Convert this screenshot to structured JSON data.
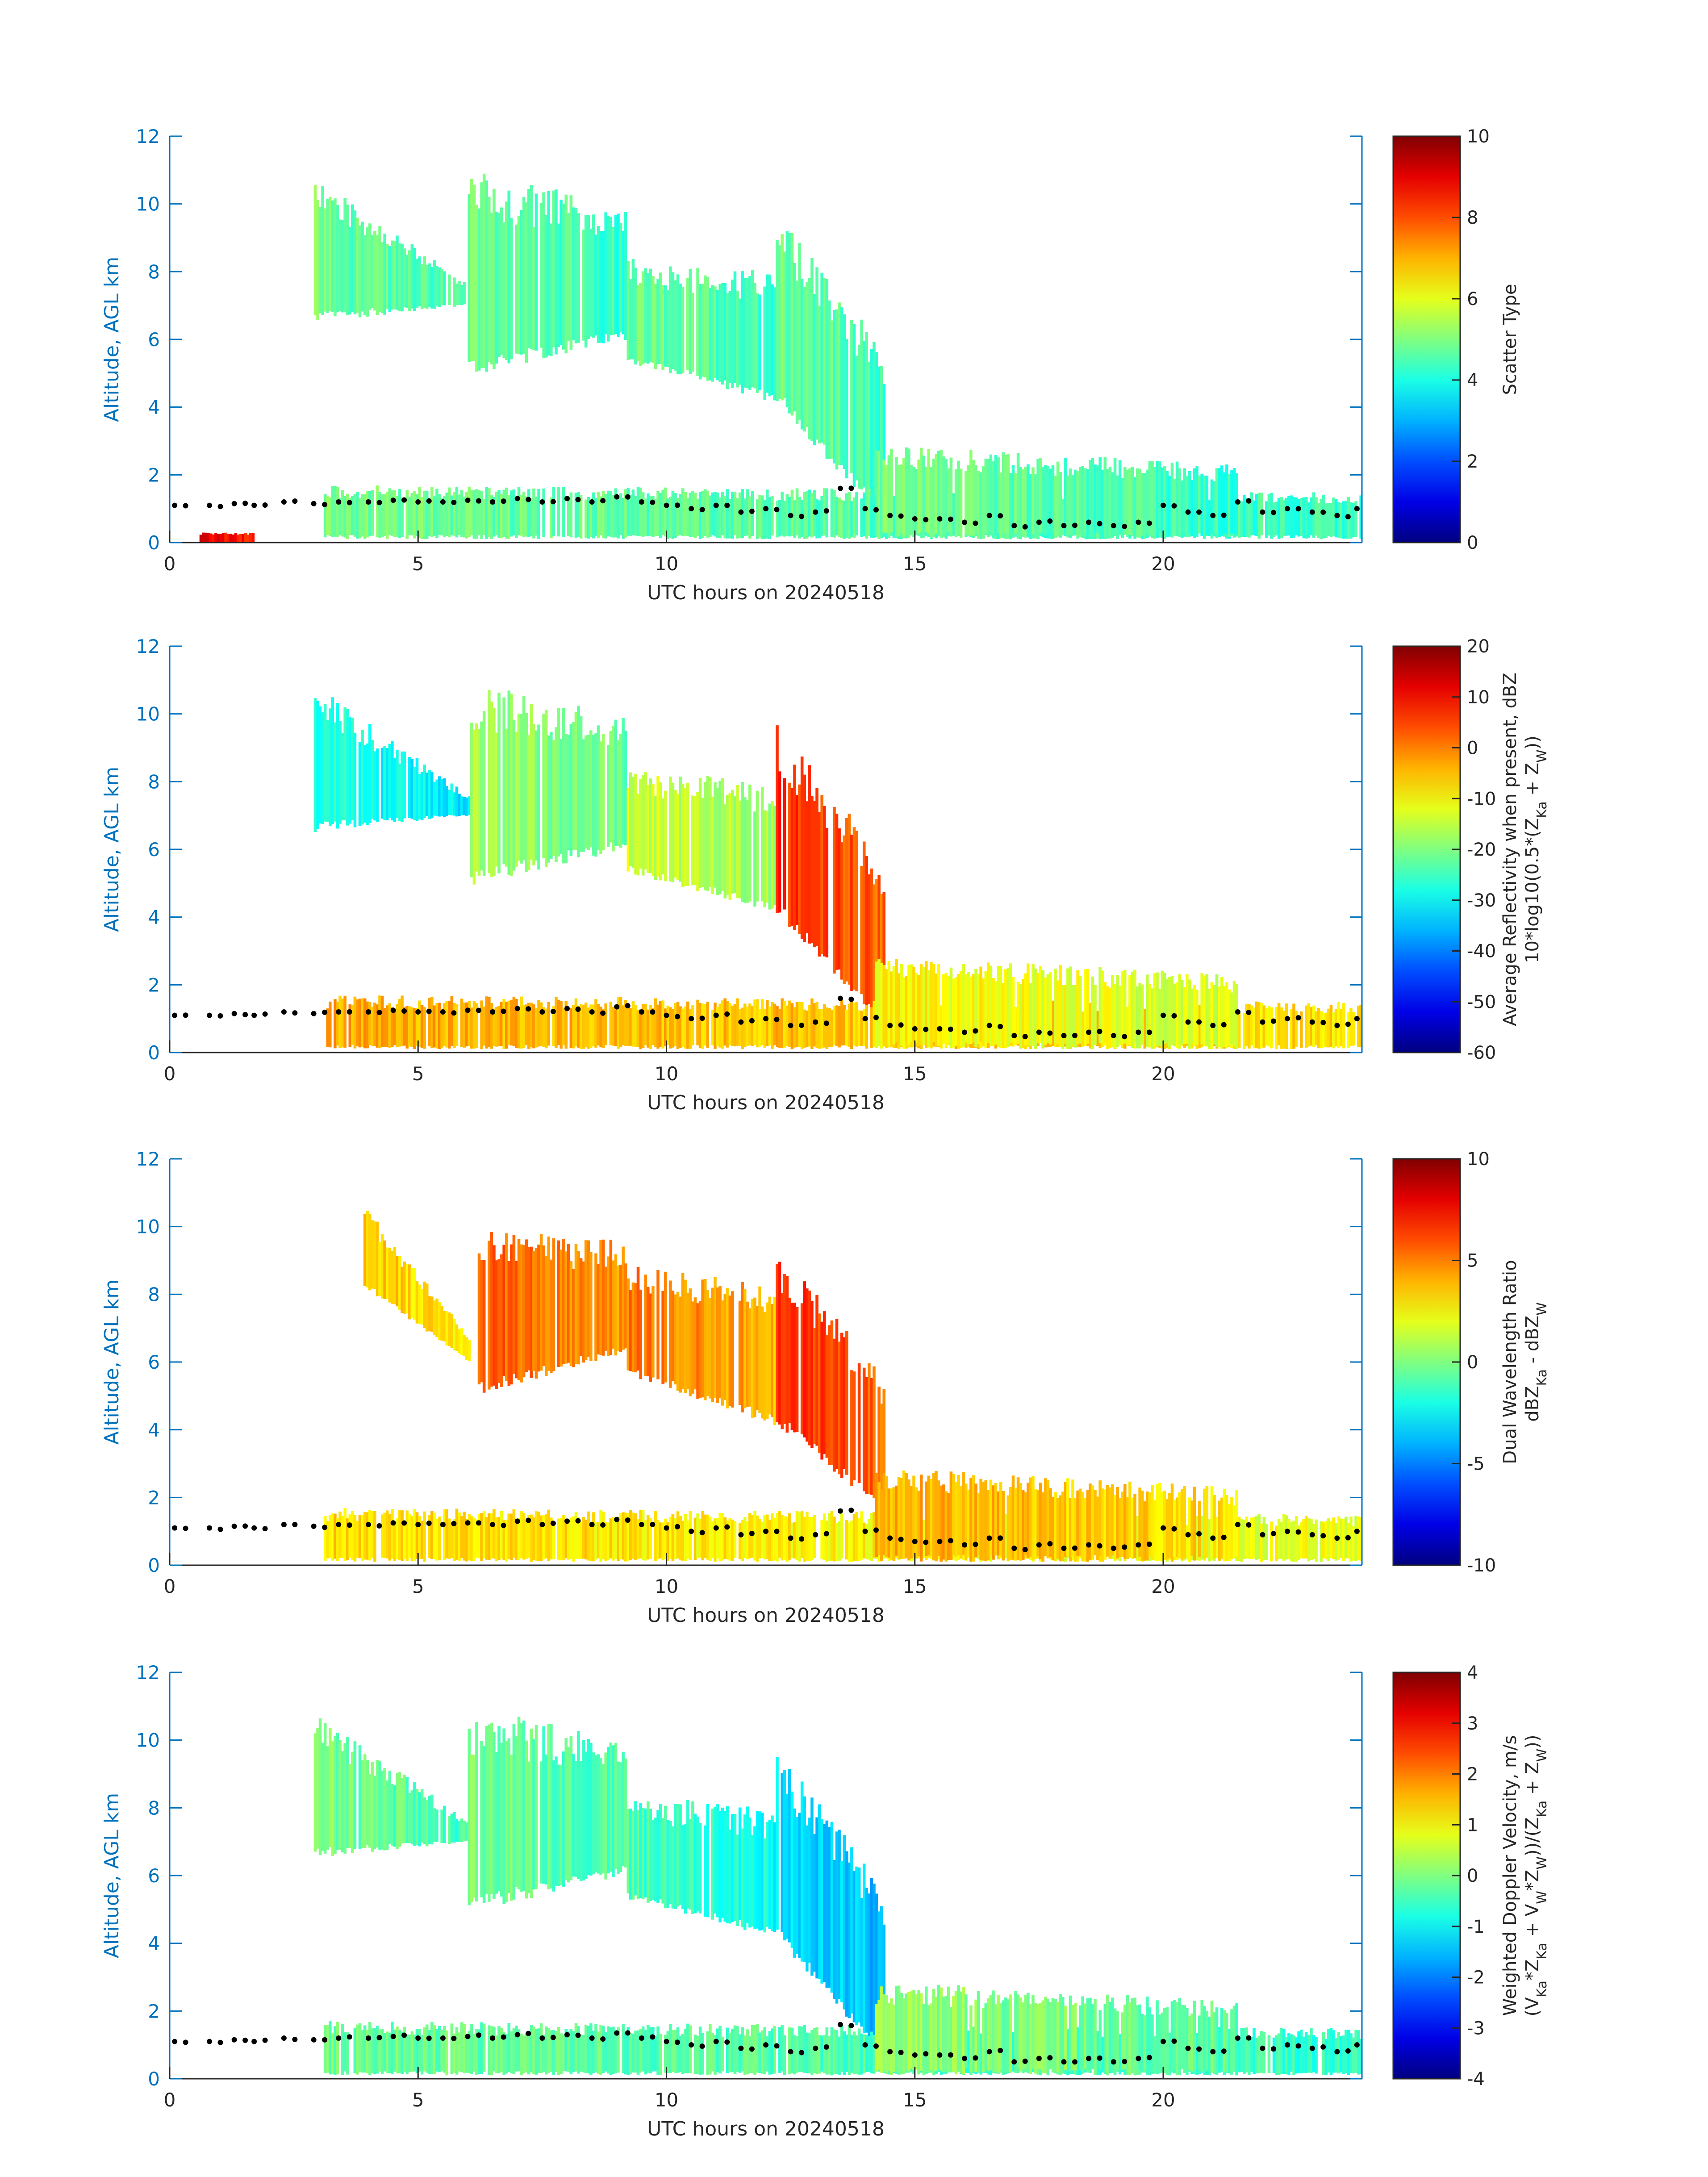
{
  "figure": {
    "xlabel": "UTC hours on 20240518",
    "ylabel": "Altitude, AGL km",
    "colors": {
      "axis_left": "#0072BD",
      "axis_bottom": "#262626",
      "marker": "#000000",
      "cloud_palette": "jet"
    }
  },
  "chart_data": [
    {
      "type": "heatmap",
      "title": "",
      "xlabel": "UTC hours on 20240518",
      "ylabel": "Altitude, AGL km",
      "xlim": [
        0,
        24
      ],
      "ylim": [
        0,
        12
      ],
      "xticks": [
        "0",
        "5",
        "10",
        "15",
        "20"
      ],
      "yticks": [
        "0",
        "2",
        "4",
        "6",
        "8",
        "10",
        "12"
      ],
      "colorbar": {
        "label_lines": [
          "Scatter Type"
        ],
        "range": [
          0,
          10
        ],
        "ticks": [
          "0",
          "2",
          "4",
          "6",
          "8",
          "10"
        ],
        "colormap": "jet"
      },
      "dominant_value": 4.3,
      "regions": [
        {
          "name": "cirrus-early",
          "hours": [
            2.9,
            6.0
          ],
          "base_km": [
            6.5,
            7.0
          ],
          "top_km": [
            10.9,
            7.6
          ],
          "value": 4.3
        },
        {
          "name": "cirrus-main",
          "hours": [
            6.0,
            9.2
          ],
          "base_km": [
            4.9,
            6.0
          ],
          "top_km": [
            11.1,
            9.9
          ],
          "value": 4.3
        },
        {
          "name": "cirrus-mid",
          "hours": [
            9.2,
            12.2
          ],
          "base_km": [
            5.3,
            4.1
          ],
          "top_km": [
            8.4,
            8.0
          ],
          "value": 4.3
        },
        {
          "name": "deep-cloud",
          "hours": [
            12.2,
            14.4
          ],
          "base_km": [
            4.1,
            0.5
          ],
          "top_km": [
            9.7,
            5.7
          ],
          "value": 4.3
        },
        {
          "name": "boundary-layer",
          "hours": [
            3.1,
            24.0
          ],
          "base_km": [
            0.1,
            0.1
          ],
          "top_km": [
            1.7,
            1.5
          ],
          "value": 4.3
        },
        {
          "name": "afternoon-layer",
          "hours": [
            14.2,
            21.5
          ],
          "base_km": [
            0.1,
            0.1
          ],
          "top_km": [
            2.9,
            2.3
          ],
          "value": 4.3
        },
        {
          "name": "near-surface-clutter",
          "hours": [
            0.6,
            1.7
          ],
          "base_km": [
            0.0,
            0.0
          ],
          "top_km": [
            0.3,
            0.3
          ],
          "value": 8.4
        }
      ]
    },
    {
      "type": "heatmap",
      "title": "",
      "xlabel": "UTC hours on 20240518",
      "ylabel": "Altitude, AGL km",
      "xlim": [
        0,
        24
      ],
      "ylim": [
        0,
        12
      ],
      "xticks": [
        "0",
        "5",
        "10",
        "15",
        "20"
      ],
      "yticks": [
        "0",
        "2",
        "4",
        "6",
        "8",
        "10",
        "12"
      ],
      "colorbar": {
        "label_lines": [
          "Average Reflectivity when present, dBZ",
          "10*log10(0.5*(Z_Ka + Z_W))"
        ],
        "range": [
          -60,
          20
        ],
        "ticks": [
          "-60",
          "-50",
          "-40",
          "-30",
          "-20",
          "-10",
          "0",
          "10",
          "20"
        ],
        "colormap": "jet"
      },
      "regions": [
        {
          "name": "cirrus-early",
          "hours": [
            2.9,
            6.0
          ],
          "base_km": [
            6.5,
            7.0
          ],
          "top_km": [
            10.9,
            7.6
          ],
          "value": -32
        },
        {
          "name": "cirrus-main",
          "hours": [
            6.0,
            9.2
          ],
          "base_km": [
            4.9,
            6.0
          ],
          "top_km": [
            11.1,
            9.9
          ],
          "value": -22
        },
        {
          "name": "cirrus-mid",
          "hours": [
            9.2,
            12.2
          ],
          "base_km": [
            5.3,
            4.1
          ],
          "top_km": [
            8.4,
            8.0
          ],
          "value": -18
        },
        {
          "name": "deep-cloud",
          "hours": [
            12.2,
            14.4
          ],
          "base_km": [
            4.1,
            0.5
          ],
          "top_km": [
            9.7,
            5.7
          ],
          "value": 2
        },
        {
          "name": "boundary-layer",
          "hours": [
            3.1,
            24.0
          ],
          "base_km": [
            0.1,
            0.1
          ],
          "top_km": [
            1.7,
            1.5
          ],
          "value": -8
        },
        {
          "name": "afternoon-layer",
          "hours": [
            14.2,
            21.5
          ],
          "base_km": [
            0.1,
            0.1
          ],
          "top_km": [
            2.9,
            2.3
          ],
          "value": -14
        }
      ]
    },
    {
      "type": "heatmap",
      "title": "",
      "xlabel": "UTC hours on 20240518",
      "ylabel": "Altitude, AGL km",
      "xlim": [
        0,
        24
      ],
      "ylim": [
        0,
        12
      ],
      "xticks": [
        "0",
        "5",
        "10",
        "15",
        "20"
      ],
      "yticks": [
        "0",
        "2",
        "4",
        "6",
        "8",
        "10",
        "12"
      ],
      "colorbar": {
        "label_lines": [
          "Dual Wavelength Ratio",
          "dBZ_Ka - dBZ_W"
        ],
        "range": [
          -10,
          10
        ],
        "ticks": [
          "-10",
          "-5",
          "0",
          "5",
          "10"
        ],
        "colormap": "jet"
      },
      "regions": [
        {
          "name": "cirrus-early",
          "hours": [
            3.9,
            6.0
          ],
          "base_km": [
            8.2,
            6.0
          ],
          "top_km": [
            10.6,
            6.8
          ],
          "value": 2.5
        },
        {
          "name": "cirrus-main",
          "hours": [
            6.2,
            9.2
          ],
          "base_km": [
            5.0,
            6.3
          ],
          "top_km": [
            9.9,
            9.6
          ],
          "value": 4.5
        },
        {
          "name": "cirrus-mid",
          "hours": [
            9.2,
            12.2
          ],
          "base_km": [
            5.6,
            4.1
          ],
          "top_km": [
            8.9,
            8.3
          ],
          "value": 4.0
        },
        {
          "name": "deep-cloud",
          "hours": [
            12.2,
            14.4
          ],
          "base_km": [
            4.1,
            1.5
          ],
          "top_km": [
            9.4,
            5.6
          ],
          "value": 5.5
        },
        {
          "name": "boundary-layer",
          "hours": [
            3.1,
            24.0
          ],
          "base_km": [
            0.1,
            0.1
          ],
          "top_km": [
            1.7,
            1.5
          ],
          "value": 2.0
        },
        {
          "name": "afternoon-layer",
          "hours": [
            14.2,
            21.5
          ],
          "base_km": [
            0.1,
            0.1
          ],
          "top_km": [
            2.9,
            2.3
          ],
          "value": 3.0
        }
      ]
    },
    {
      "type": "heatmap",
      "title": "",
      "xlabel": "UTC hours on 20240518",
      "ylabel": "Altitude, AGL km",
      "xlim": [
        0,
        24
      ],
      "ylim": [
        0,
        12
      ],
      "xticks": [
        "0",
        "5",
        "10",
        "15",
        "20"
      ],
      "yticks": [
        "0",
        "2",
        "4",
        "6",
        "8",
        "10",
        "12"
      ],
      "colorbar": {
        "label_lines": [
          "Weighted Doppler Velocity, m/s",
          "(V_Ka*Z_Ka + V_W*Z_W))/(Z_Ka + Z_W))"
        ],
        "range": [
          -4,
          4
        ],
        "ticks": [
          "-4",
          "-3",
          "-2",
          "-1",
          "0",
          "1",
          "2",
          "3",
          "4"
        ],
        "colormap": "jet"
      },
      "regions": [
        {
          "name": "cirrus-early",
          "hours": [
            2.9,
            6.0
          ],
          "base_km": [
            6.5,
            7.0
          ],
          "top_km": [
            10.9,
            7.6
          ],
          "value": -0.5
        },
        {
          "name": "cirrus-main",
          "hours": [
            6.0,
            9.2
          ],
          "base_km": [
            4.9,
            6.0
          ],
          "top_km": [
            11.1,
            9.9
          ],
          "value": -0.5
        },
        {
          "name": "cirrus-mid",
          "hours": [
            9.2,
            12.2
          ],
          "base_km": [
            5.3,
            4.1
          ],
          "top_km": [
            8.4,
            8.0
          ],
          "value": -0.9
        },
        {
          "name": "deep-cloud",
          "hours": [
            12.2,
            14.4
          ],
          "base_km": [
            4.1,
            0.5
          ],
          "top_km": [
            9.7,
            5.7
          ],
          "value": -1.6
        },
        {
          "name": "boundary-layer",
          "hours": [
            3.1,
            24.0
          ],
          "base_km": [
            0.1,
            0.1
          ],
          "top_km": [
            1.7,
            1.5
          ],
          "value": -0.6
        },
        {
          "name": "afternoon-layer",
          "hours": [
            14.2,
            21.5
          ],
          "base_km": [
            0.1,
            0.1
          ],
          "top_km": [
            2.9,
            2.3
          ],
          "value": -0.3
        }
      ]
    }
  ],
  "cloud_base_series": {
    "hours": [
      0.1,
      0.8,
      1.3,
      1.7,
      2.3,
      2.9,
      3.4,
      4.0,
      4.5,
      5.0,
      5.5,
      6.0,
      6.5,
      7.0,
      7.5,
      8.0,
      8.5,
      9.0,
      9.5,
      10.0,
      10.5,
      11.0,
      11.5,
      12.0,
      12.5,
      13.0,
      13.5,
      14.0,
      14.5,
      15.0,
      15.5,
      16.0,
      16.5,
      17.0,
      17.5,
      18.0,
      18.5,
      19.0,
      19.5,
      20.0,
      20.5,
      21.0,
      21.5,
      22.0,
      22.5,
      23.0,
      23.5,
      23.9
    ],
    "altitude_km": [
      1.1,
      1.1,
      1.15,
      1.1,
      1.2,
      1.15,
      1.2,
      1.2,
      1.25,
      1.2,
      1.2,
      1.25,
      1.2,
      1.3,
      1.2,
      1.3,
      1.2,
      1.35,
      1.2,
      1.1,
      1.0,
      1.1,
      0.9,
      1.0,
      0.8,
      0.9,
      1.6,
      1.0,
      0.8,
      0.7,
      0.7,
      0.6,
      0.8,
      0.5,
      0.6,
      0.5,
      0.6,
      0.5,
      0.6,
      1.1,
      0.9,
      0.8,
      1.2,
      0.9,
      1.0,
      0.9,
      0.8,
      1.0
    ]
  }
}
